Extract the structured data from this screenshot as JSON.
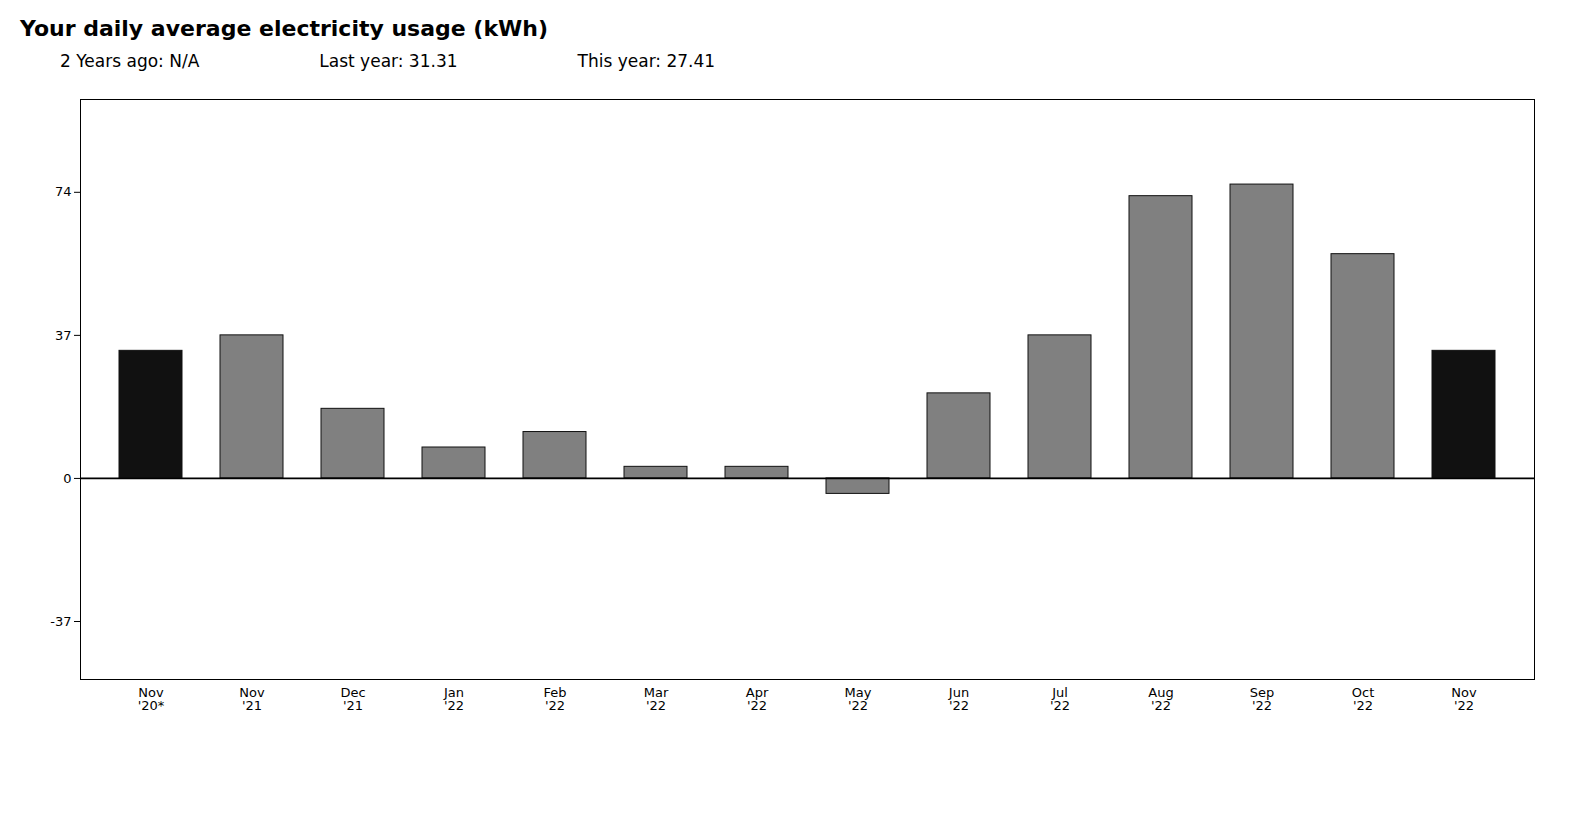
{
  "chart_data": {
    "type": "bar",
    "title": "Your daily average electricity usage (kWh)",
    "subtitle": [
      "2 Years ago: N/A",
      "Last year: 31.31",
      "This year: 27.41"
    ],
    "categories": [
      "Nov\n'20*",
      "Nov\n'21",
      "Dec\n'21",
      "Jan\n'22",
      "Feb\n'22",
      "Mar\n'22",
      "Apr\n'22",
      "May\n'22",
      "Jun\n'22",
      "Jul\n'22",
      "Aug\n'22",
      "Sep\n'22",
      "Oct\n'22",
      "Nov\n'22"
    ],
    "values": [
      33,
      37,
      18,
      8,
      12,
      3,
      3,
      -4,
      22,
      37,
      73,
      76,
      58,
      33
    ],
    "colors": [
      "#111111",
      "#808080",
      "#808080",
      "#808080",
      "#808080",
      "#808080",
      "#808080",
      "#808080",
      "#808080",
      "#808080",
      "#808080",
      "#808080",
      "#808080",
      "#111111"
    ],
    "ylim": [
      -52,
      98
    ],
    "yticks": [
      -37,
      0,
      37,
      74
    ],
    "grid": false
  }
}
